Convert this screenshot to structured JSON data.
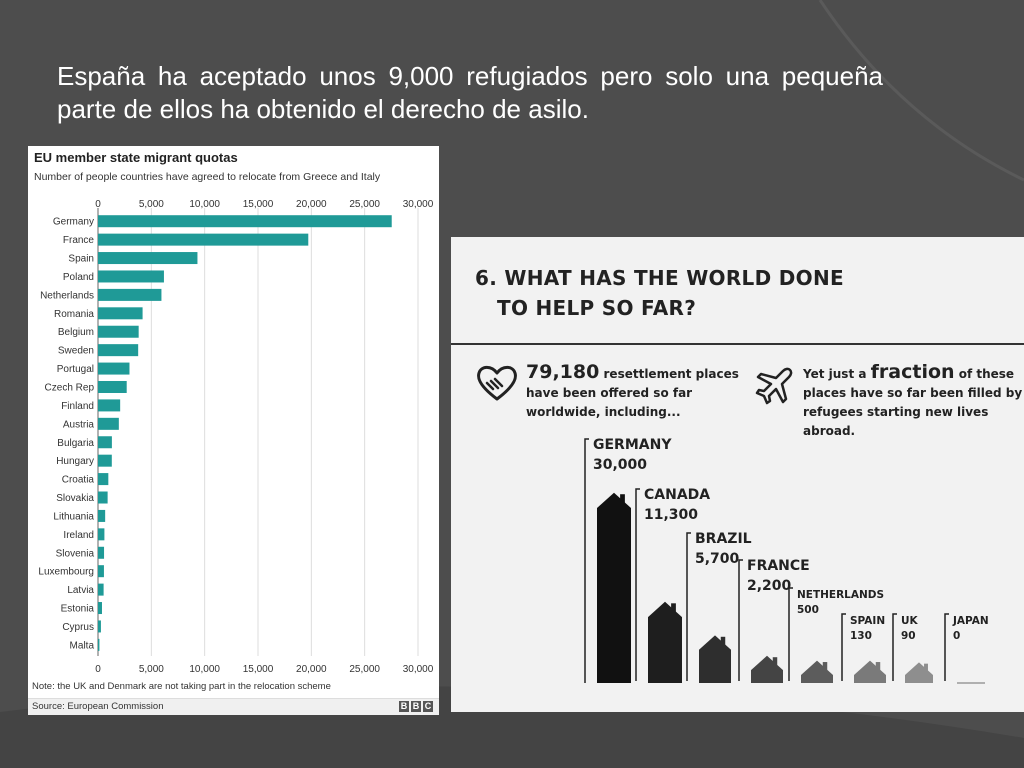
{
  "slide": {
    "title": "España ha aceptado unos  9,000 refugiados pero solo una pequeña parte de ellos ha obtenido el derecho de asilo."
  },
  "eu_chart": {
    "title": "EU member state migrant quotas",
    "subtitle": "Number of people countries have agreed to relocate from Greece and Italy",
    "note": "Note: the UK and Denmark are not taking part in the relocation scheme",
    "source": "Source: European Commission",
    "logo_letters": [
      "B",
      "B",
      "C"
    ]
  },
  "infographic": {
    "heading_line1": "6. WHAT HAS THE WORLD DONE",
    "heading_line2": "TO HELP SO FAR?",
    "left_stat_number": "79,180",
    "left_stat_text1": " resettlement places",
    "left_stat_text2": "have been offered so far",
    "left_stat_text3": "worldwide, including...",
    "right_stat_pre": "Yet just a ",
    "right_stat_word": "fraction",
    "right_stat_post": " of these",
    "right_stat_text2": "places have so far been filled by",
    "right_stat_text3": "refugees starting new lives abroad.",
    "left_icon": "handshake-heart-icon",
    "right_icon": "airplane-icon"
  },
  "colors": {
    "background": "#4d4d4d",
    "eu_bar": "#1f9a97",
    "house_dark": "#111111"
  },
  "chart_data": [
    {
      "type": "bar",
      "orientation": "horizontal",
      "title": "EU member state migrant quotas",
      "subtitle": "Number of people countries have agreed to relocate from Greece and Italy",
      "categories": [
        "Germany",
        "France",
        "Spain",
        "Poland",
        "Netherlands",
        "Romania",
        "Belgium",
        "Sweden",
        "Portugal",
        "Czech Rep",
        "Finland",
        "Austria",
        "Bulgaria",
        "Hungary",
        "Croatia",
        "Slovakia",
        "Lithuania",
        "Ireland",
        "Slovenia",
        "Luxembourg",
        "Latvia",
        "Estonia",
        "Cyprus",
        "Malta"
      ],
      "values": [
        27536,
        19714,
        9323,
        6182,
        5947,
        4180,
        3812,
        3766,
        2951,
        2691,
        2078,
        1953,
        1302,
        1294,
        968,
        902,
        671,
        600,
        567,
        557,
        526,
        373,
        274,
        133
      ],
      "xlim": [
        0,
        30000
      ],
      "ticks": [
        0,
        5000,
        10000,
        15000,
        20000,
        25000,
        30000
      ],
      "tick_labels": [
        "0",
        "5,000",
        "10,000",
        "15,000",
        "20,000",
        "25,000",
        "30,000"
      ],
      "grid": true
    },
    {
      "type": "bar",
      "style": "house-pictogram",
      "categories": [
        "GERMANY",
        "CANADA",
        "BRAZIL",
        "FRANCE",
        "NETHERLANDS",
        "SPAIN",
        "UK",
        "JAPAN"
      ],
      "values": [
        30000,
        11300,
        5700,
        2200,
        500,
        130,
        90,
        0
      ],
      "value_labels": [
        "30,000",
        "11,300",
        "5,700",
        "2,200",
        "500",
        "130",
        "90",
        "0"
      ]
    }
  ]
}
